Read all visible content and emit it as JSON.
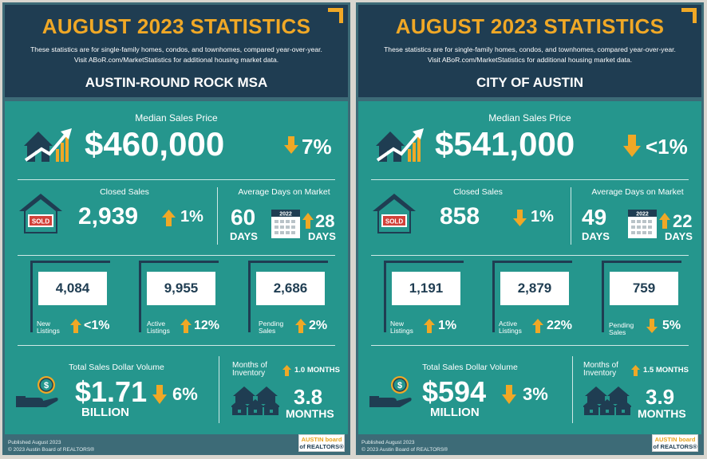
{
  "panels": [
    {
      "title": "AUGUST 2023 STATISTICS",
      "desc_line1": "These statistics are for single-family homes, condos, and townhomes, compared year-over-year.",
      "desc_line2": "Visit ABoR.com/MarketStatistics for additional housing market data.",
      "area": "AUSTIN-ROUND ROCK MSA",
      "median": {
        "label": "Median Sales Price",
        "value": "$460,000",
        "change": "7%",
        "direction": "down"
      },
      "closed": {
        "label": "Closed Sales",
        "value": "2,939",
        "change": "1%",
        "direction": "up",
        "sold": "SOLD"
      },
      "dom": {
        "label": "Average Days on Market",
        "value": "60",
        "unit": "DAYS",
        "year": "2022",
        "prior": "28",
        "prior_unit": "DAYS",
        "direction": "up"
      },
      "new_listings": {
        "label1": "New",
        "label2": "Listings",
        "value": "4,084",
        "change": "<1%",
        "direction": "up"
      },
      "active_listings": {
        "label1": "Active",
        "label2": "Listings",
        "value": "9,955",
        "change": "12%",
        "direction": "up"
      },
      "pending_sales": {
        "label1": "Pending",
        "label2": "Sales",
        "value": "2,686",
        "change": "2%",
        "direction": "up"
      },
      "volume": {
        "label": "Total Sales Dollar Volume",
        "value": "$1.71",
        "unit": "BILLION",
        "change": "6%",
        "direction": "down"
      },
      "inventory": {
        "label1": "Months of",
        "label2": "Inventory",
        "change": "1.0 MONTHS",
        "value": "3.8",
        "unit": "MONTHS",
        "direction": "up"
      },
      "footer1": "Published August 2023",
      "footer2": "© 2023 Austin Board of REALTORS®"
    },
    {
      "title": "AUGUST 2023 STATISTICS",
      "desc_line1": "These statistics are for single-family homes, condos, and townhomes, compared year-over-year.",
      "desc_line2": "Visit ABoR.com/MarketStatistics for additional housing market data.",
      "area": "CITY OF AUSTIN",
      "median": {
        "label": "Median Sales Price",
        "value": "$541,000",
        "change": "<1%",
        "direction": "down"
      },
      "closed": {
        "label": "Closed Sales",
        "value": "858",
        "change": "1%",
        "direction": "down",
        "sold": "SOLD"
      },
      "dom": {
        "label": "Average Days on Market",
        "value": "49",
        "unit": "DAYS",
        "year": "2022",
        "prior": "22",
        "prior_unit": "DAYS",
        "direction": "up"
      },
      "new_listings": {
        "label1": "New",
        "label2": "Listings",
        "value": "1,191",
        "change": "1%",
        "direction": "up"
      },
      "active_listings": {
        "label1": "Active",
        "label2": "Listings",
        "value": "2,879",
        "change": "22%",
        "direction": "up"
      },
      "pending_sales": {
        "label1": "Pending",
        "label2": "Sales",
        "value": "759",
        "change": "5%",
        "direction": "down"
      },
      "volume": {
        "label": "Total Sales Dollar Volume",
        "value": "$594",
        "unit": "MILLION",
        "change": "3%",
        "direction": "down"
      },
      "inventory": {
        "label1": "Months of",
        "label2": "Inventory",
        "change": "1.5 MONTHS",
        "value": "3.9",
        "unit": "MONTHS",
        "direction": "up"
      },
      "footer1": "Published August 2023",
      "footer2": "© 2023 Austin Board of REALTORS®"
    }
  ],
  "logo": {
    "line1": "AUSTIN board",
    "line2": "of REALTORS®"
  },
  "colors": {
    "navy": "#1f3d52",
    "teal": "#25968d",
    "gold": "#f0a826",
    "frame": "#3d6b77"
  }
}
